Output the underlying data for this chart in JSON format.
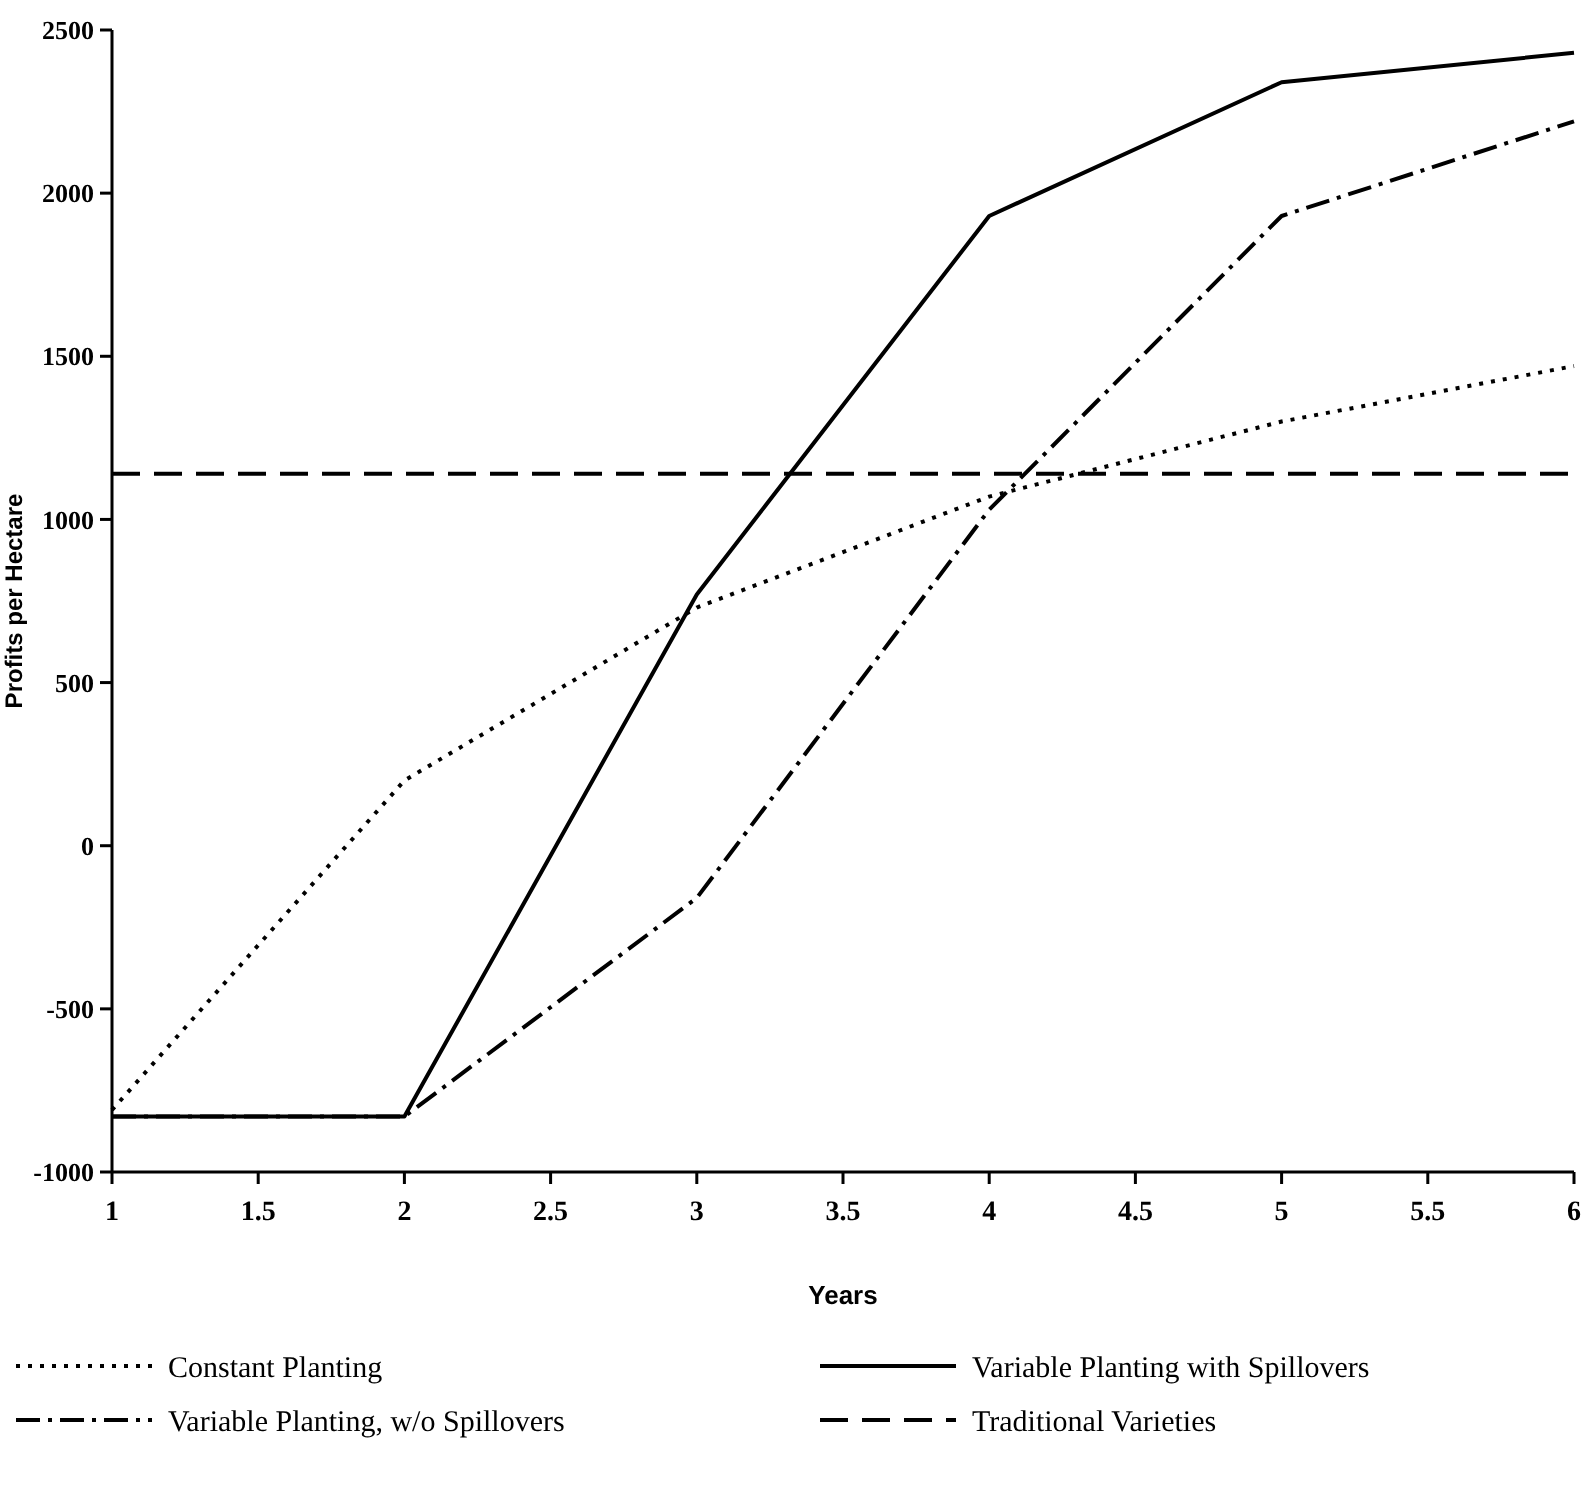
{
  "chart_data": {
    "type": "line",
    "xlabel": "Years",
    "ylabel": "Profits per Hectare",
    "x": [
      1,
      2,
      3,
      4,
      5,
      6
    ],
    "series": [
      {
        "name": "Constant Planting",
        "color": "#000000",
        "line_style": "dotted",
        "values": [
          -810,
          200,
          730,
          1070,
          1300,
          1470
        ]
      },
      {
        "name": "Variable Planting with Spillovers",
        "color": "#000000",
        "line_style": "solid",
        "values": [
          -830,
          -830,
          770,
          1930,
          2340,
          2430
        ]
      },
      {
        "name": "Variable Planting, w/o Spillovers",
        "color": "#000000",
        "line_style": "dashdot",
        "values": [
          -830,
          -830,
          -160,
          1030,
          1930,
          2220
        ]
      },
      {
        "name": "Traditional Varieties",
        "color": "#000000",
        "line_style": "dashed",
        "values": [
          1140,
          1140,
          1140,
          1140,
          1140,
          1140
        ]
      }
    ],
    "xlim": [
      1,
      6
    ],
    "xticks": [
      1,
      1.5,
      2,
      2.5,
      3,
      3.5,
      4,
      4.5,
      5,
      5.5,
      6
    ],
    "ylim": [
      -1000,
      2500
    ],
    "yticks": [
      -1000,
      -500,
      0,
      500,
      1000,
      1500,
      2000,
      2500
    ],
    "grid": false,
    "legend": "bottom",
    "marker": "none"
  }
}
